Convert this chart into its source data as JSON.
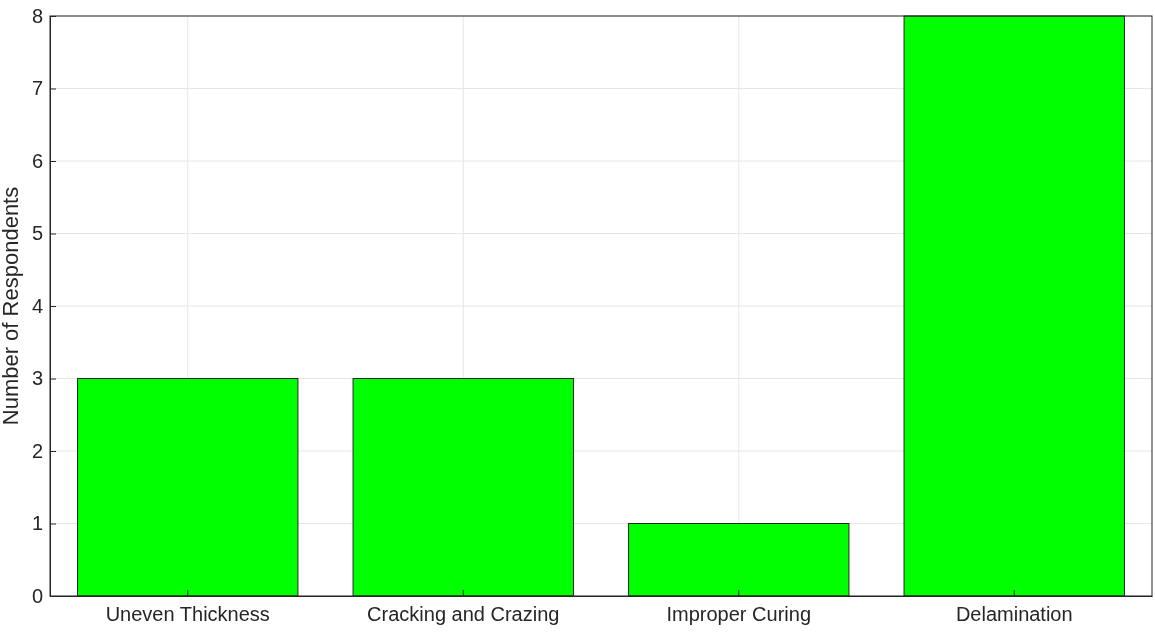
{
  "chart_data": {
    "type": "bar",
    "ylabel": "Number of Respondents",
    "categories": [
      "Uneven Thickness",
      "Cracking and Crazing",
      "Improper Curing",
      "Delamination"
    ],
    "values": [
      3,
      3,
      1,
      8
    ],
    "color": "#00ff00",
    "ylim": [
      0,
      8
    ],
    "yticks": [
      0,
      1,
      2,
      3,
      4,
      5,
      6,
      7,
      8
    ],
    "grid": true
  }
}
